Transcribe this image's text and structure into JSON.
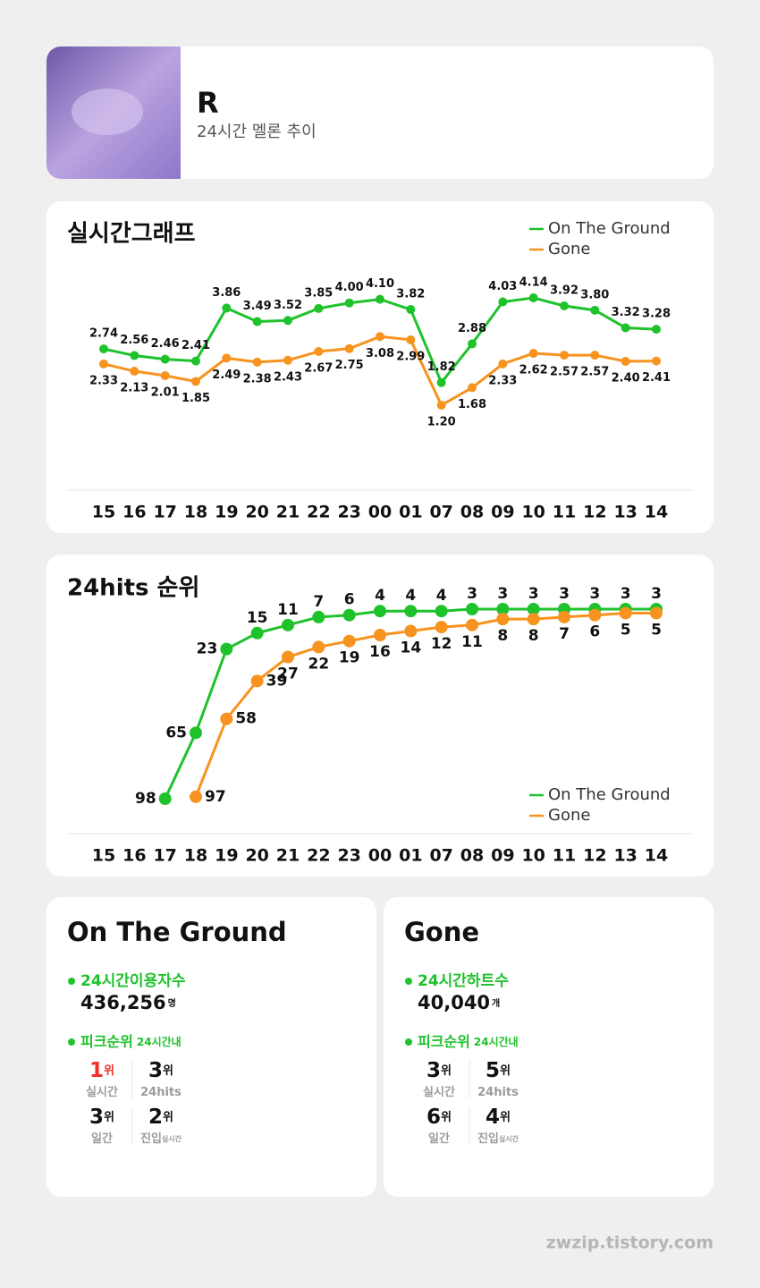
{
  "header": {
    "title": "R",
    "subtitle": "24시간 멜론 추이"
  },
  "chart_data": [
    {
      "type": "line",
      "title": "실시간그래프",
      "categories": [
        "15",
        "16",
        "17",
        "18",
        "19",
        "20",
        "21",
        "22",
        "23",
        "00",
        "01",
        "07",
        "08",
        "09",
        "10",
        "11",
        "12",
        "13",
        "14"
      ],
      "legend": "upper right",
      "label_side": [
        "above",
        "below"
      ],
      "series": [
        {
          "name": "On The Ground",
          "color": "#1ec22b",
          "values": [
            2.74,
            2.56,
            2.46,
            2.41,
            3.86,
            3.49,
            3.52,
            3.85,
            4.0,
            4.1,
            3.82,
            1.82,
            2.88,
            4.03,
            4.14,
            3.92,
            3.8,
            3.32,
            3.28
          ],
          "value_labels": [
            "2.74",
            "2.56",
            "2.46",
            "2.41",
            "3.86",
            "3.49",
            "3.52",
            "3.85",
            "4.00",
            "4.10",
            "3.82",
            "1.82",
            "2.88",
            "4.03",
            "4.14",
            "3.92",
            "3.80",
            "3.32",
            "3.28"
          ]
        },
        {
          "name": "Gone",
          "color": "#f7931e",
          "values": [
            2.33,
            2.13,
            2.01,
            1.85,
            2.49,
            2.38,
            2.43,
            2.67,
            2.75,
            3.08,
            2.99,
            1.2,
            1.68,
            2.33,
            2.62,
            2.57,
            2.57,
            2.4,
            2.41
          ],
          "value_labels": [
            "2.33",
            "2.13",
            "2.01",
            "1.85",
            "2.49",
            "2.38",
            "2.43",
            "2.67",
            "2.75",
            "3.08",
            "2.99",
            "1.20",
            "1.68",
            "2.33",
            "2.62",
            "2.57",
            "2.57",
            "2.40",
            "2.41"
          ]
        }
      ]
    },
    {
      "type": "line",
      "title": "24hits 순위",
      "inverted": true,
      "categories": [
        "15",
        "16",
        "17",
        "18",
        "19",
        "20",
        "21",
        "22",
        "23",
        "00",
        "01",
        "07",
        "08",
        "09",
        "10",
        "11",
        "12",
        "13",
        "14"
      ],
      "legend": "lower right",
      "label_side": [
        "above",
        "below"
      ],
      "series": [
        {
          "name": "On The Ground",
          "color": "#1ec22b",
          "values": [
            null,
            null,
            98,
            65,
            23,
            15,
            11,
            7,
            6,
            4,
            4,
            4,
            3,
            3,
            3,
            3,
            3,
            3,
            3
          ]
        },
        {
          "name": "Gone",
          "color": "#f7931e",
          "values": [
            null,
            null,
            null,
            97,
            58,
            39,
            27,
            22,
            19,
            16,
            14,
            12,
            11,
            8,
            8,
            7,
            6,
            5,
            5
          ]
        }
      ]
    }
  ],
  "cards": [
    {
      "title": "On The Ground",
      "stat_label": "24시간이용자수",
      "stat_value": "436,256",
      "stat_unit": "명",
      "peak_label": "피크순위",
      "peak_note": "24시간내",
      "ranks": [
        {
          "value": 1,
          "unit": "위",
          "label": "실시간",
          "color": "#f0302a"
        },
        {
          "value": 3,
          "unit": "위",
          "label": "24hits"
        },
        {
          "value": 3,
          "unit": "위",
          "label": "일간"
        },
        {
          "value": 2,
          "unit": "위",
          "label": "진입",
          "note": "실시간"
        }
      ]
    },
    {
      "title": "Gone",
      "stat_label": "24시간하트수",
      "stat_value": "40,040",
      "stat_unit": "개",
      "peak_label": "피크순위",
      "peak_note": "24시간내",
      "ranks": [
        {
          "value": 3,
          "unit": "위",
          "label": "실시간"
        },
        {
          "value": 5,
          "unit": "위",
          "label": "24hits"
        },
        {
          "value": 6,
          "unit": "위",
          "label": "일간"
        },
        {
          "value": 4,
          "unit": "위",
          "label": "진입",
          "note": "실시간"
        }
      ]
    }
  ],
  "footer": "zwzip.tistory.com"
}
